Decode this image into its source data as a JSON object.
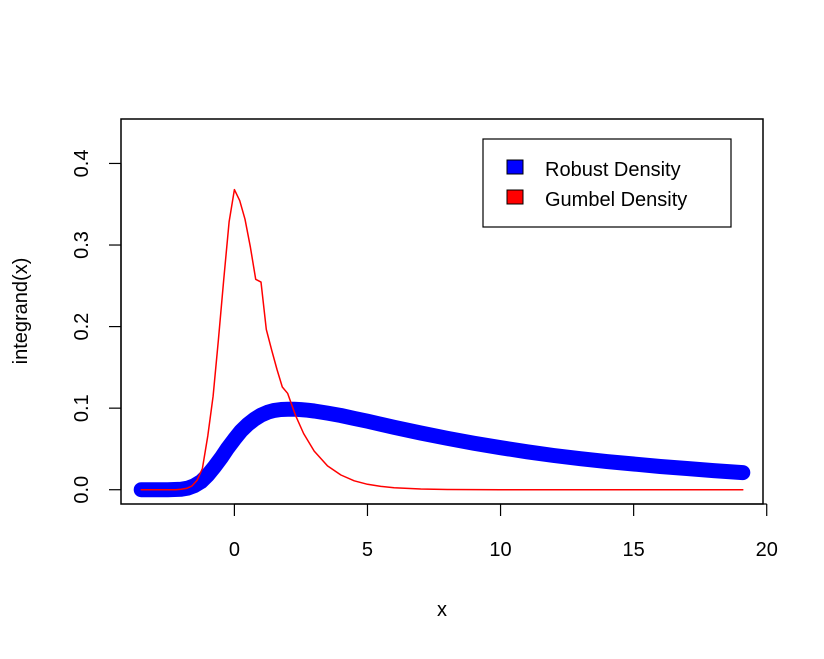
{
  "chart_data": {
    "type": "line",
    "title": "",
    "xlabel": "x",
    "ylabel": "integrand(x)",
    "xlim": [
      -4.26,
      19.86
    ],
    "ylim": [
      -0.0175,
      0.4545
    ],
    "xticks": [
      0,
      5,
      10,
      15,
      20
    ],
    "yticks": [
      0.0,
      0.1,
      0.2,
      0.3,
      0.4
    ],
    "xtick_labels": [
      "0",
      "5",
      "10",
      "15",
      "20"
    ],
    "ytick_labels": [
      "0.0",
      "0.1",
      "0.2",
      "0.3",
      "0.4"
    ],
    "grid": false,
    "legend_position": "top-right",
    "series": [
      {
        "name": "Robust Density",
        "color": "#0000ff",
        "style": "thick-points",
        "x": [
          -3.5,
          -3.0,
          -2.5,
          -2.0,
          -1.75,
          -1.5,
          -1.25,
          -1.0,
          -0.75,
          -0.5,
          -0.25,
          0.0,
          0.25,
          0.5,
          0.75,
          1.0,
          1.25,
          1.5,
          1.75,
          2.0,
          2.25,
          2.5,
          2.75,
          3.0,
          3.5,
          4.0,
          4.5,
          5.0,
          6.0,
          7.0,
          8.0,
          9.0,
          10.0,
          11.0,
          12.0,
          13.0,
          14.0,
          15.0,
          16.0,
          17.0,
          18.0,
          19.1
        ],
        "y": [
          0.0,
          0.0,
          0.0,
          0.0005,
          0.002,
          0.005,
          0.01,
          0.018,
          0.028,
          0.039,
          0.051,
          0.062,
          0.072,
          0.08,
          0.0865,
          0.0915,
          0.095,
          0.0972,
          0.0983,
          0.0987,
          0.0987,
          0.0982,
          0.0975,
          0.0965,
          0.094,
          0.091,
          0.0875,
          0.084,
          0.0765,
          0.0695,
          0.063,
          0.057,
          0.0515,
          0.0465,
          0.042,
          0.038,
          0.0345,
          0.0315,
          0.0285,
          0.026,
          0.0235,
          0.021
        ]
      },
      {
        "name": "Gumbel Density",
        "color": "#ff0000",
        "style": "line",
        "x": [
          -3.5,
          -3.0,
          -2.5,
          -2.2,
          -2.0,
          -1.8,
          -1.6,
          -1.4,
          -1.2,
          -1.0,
          -0.8,
          -0.6,
          -0.4,
          -0.2,
          0.0,
          0.2,
          0.4,
          0.6,
          0.8,
          1.0,
          1.2,
          1.4,
          1.6,
          1.8,
          2.0,
          2.3,
          2.6,
          3.0,
          3.5,
          4.0,
          4.5,
          5.0,
          5.5,
          6.0,
          7.0,
          8.0,
          10.0,
          12.0,
          15.0,
          19.1
        ],
        "y": [
          0.0,
          0.0,
          0.0,
          0.0,
          0.0005,
          0.0016,
          0.0045,
          0.0115,
          0.026,
          0.066,
          0.1147,
          0.1838,
          0.2573,
          0.3284,
          0.3679,
          0.3544,
          0.3317,
          0.2973,
          0.258,
          0.2546,
          0.1966,
          0.1711,
          0.1474,
          0.1259,
          0.1182,
          0.0909,
          0.0689,
          0.0474,
          0.0292,
          0.018,
          0.011,
          0.0067,
          0.0041,
          0.0025,
          0.0009,
          0.0003,
          0.0,
          0.0,
          0.0,
          0.0
        ]
      }
    ]
  }
}
